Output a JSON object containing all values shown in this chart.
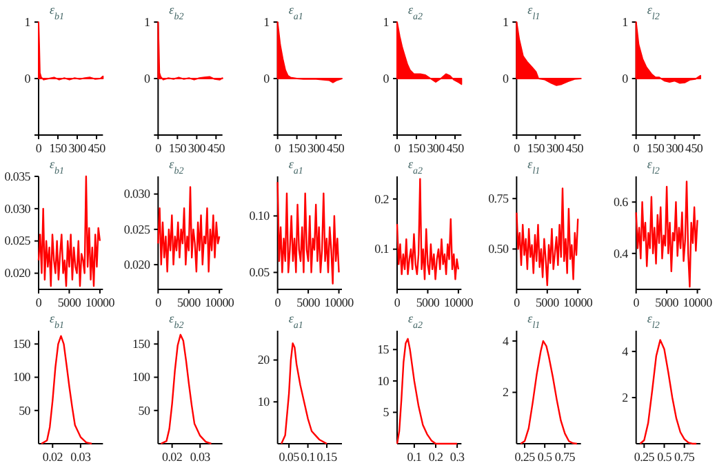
{
  "chart_data": [
    {
      "type": "area",
      "title": "ε$_{b1}$",
      "x": [
        0,
        5,
        10,
        20,
        40,
        80,
        120,
        160,
        200,
        240,
        280,
        320,
        360,
        400,
        440,
        480,
        500
      ],
      "series": [
        {
          "color": "#ff0000",
          "values": [
            1,
            0.6,
            0.1,
            0.02,
            -0.02,
            0,
            0.02,
            -0.02,
            0.01,
            -0.02,
            0.01,
            -0.01,
            0.01,
            0.02,
            -0.01,
            0,
            0.04
          ]
        }
      ],
      "xlim": [
        0,
        500
      ],
      "ylim": [
        -1,
        1
      ],
      "xticks": [
        0,
        150,
        300,
        450
      ],
      "yticks": [
        {
          "value": -1,
          "label": null
        },
        0,
        1
      ]
    },
    {
      "type": "area",
      "title": "ε$_{b2}$",
      "x": [
        0,
        5,
        10,
        20,
        40,
        80,
        120,
        160,
        200,
        240,
        280,
        320,
        360,
        400,
        440,
        480,
        500
      ],
      "series": [
        {
          "color": "#ff0000",
          "values": [
            1,
            0.6,
            0.1,
            0.03,
            -0.02,
            0.01,
            -0.01,
            0.02,
            -0.01,
            0.01,
            -0.02,
            0.01,
            0.02,
            0.03,
            -0.01,
            -0.02,
            0.01
          ]
        }
      ],
      "xlim": [
        0,
        500
      ],
      "ylim": [
        -1,
        1
      ],
      "xticks": [
        0,
        150,
        300,
        450
      ],
      "yticks": [
        {
          "value": -1,
          "label": null
        },
        0,
        1
      ]
    },
    {
      "type": "area",
      "title": "ε$_{a1}$",
      "x": [
        0,
        20,
        40,
        60,
        80,
        100,
        150,
        200,
        300,
        400,
        430,
        460,
        500
      ],
      "series": [
        {
          "color": "#ff0000",
          "values": [
            1,
            0.6,
            0.35,
            0.15,
            0.05,
            0.02,
            0,
            -0.01,
            -0.01,
            -0.03,
            -0.07,
            -0.03,
            0
          ]
        }
      ],
      "xlim": [
        0,
        500
      ],
      "ylim": [
        -1,
        1
      ],
      "xticks": [
        0,
        150,
        300,
        450
      ],
      "yticks": [
        {
          "value": -1,
          "label": null
        },
        0,
        1
      ]
    },
    {
      "type": "area",
      "title": "ε$_{a2}$",
      "x": [
        0,
        20,
        40,
        60,
        80,
        100,
        130,
        180,
        220,
        260,
        300,
        340,
        380,
        410,
        440,
        480,
        500
      ],
      "series": [
        {
          "color": "#ff0000",
          "values": [
            1,
            0.75,
            0.55,
            0.4,
            0.25,
            0.15,
            0.08,
            0.08,
            0.06,
            0,
            -0.06,
            0,
            0.08,
            0.05,
            -0.02,
            -0.07,
            -0.1
          ]
        }
      ],
      "xlim": [
        0,
        500
      ],
      "ylim": [
        -1,
        1
      ],
      "xticks": [
        0,
        150,
        300,
        450
      ],
      "yticks": [
        {
          "value": -1,
          "label": null
        },
        0,
        1
      ]
    },
    {
      "type": "area",
      "title": "ε$_{l1}$",
      "x": [
        0,
        20,
        50,
        80,
        120,
        150,
        170,
        220,
        270,
        310,
        350,
        400,
        450,
        500
      ],
      "series": [
        {
          "color": "#ff0000",
          "values": [
            1,
            0.7,
            0.4,
            0.3,
            0.2,
            0.12,
            0,
            -0.02,
            -0.08,
            -0.12,
            -0.1,
            -0.05,
            -0.01,
            0
          ]
        }
      ],
      "xlim": [
        0,
        500
      ],
      "ylim": [
        -1,
        1
      ],
      "xticks": [
        0,
        150,
        300,
        450
      ],
      "yticks": [
        {
          "value": -1,
          "label": null
        },
        0,
        1
      ]
    },
    {
      "type": "area",
      "title": "ε$_{l2}$",
      "x": [
        0,
        20,
        50,
        80,
        120,
        150,
        180,
        220,
        260,
        300,
        340,
        380,
        420,
        460,
        500
      ],
      "series": [
        {
          "color": "#ff0000",
          "values": [
            1,
            0.6,
            0.35,
            0.2,
            0.08,
            0.02,
            0.02,
            -0.04,
            -0.06,
            -0.04,
            -0.08,
            -0.07,
            -0.02,
            -0.01,
            0.05
          ]
        }
      ],
      "xlim": [
        0,
        500
      ],
      "ylim": [
        -1,
        1
      ],
      "xticks": [
        0,
        150,
        300,
        450
      ],
      "yticks": [
        {
          "value": -1,
          "label": null
        },
        0,
        1
      ]
    },
    {
      "type": "line",
      "title": "ε$_{b1}$",
      "x": [
        0,
        250,
        500,
        750,
        1000,
        1250,
        1500,
        1750,
        2000,
        2250,
        2500,
        2750,
        3000,
        3250,
        3500,
        3750,
        4000,
        4250,
        4500,
        4750,
        5000,
        5250,
        5500,
        5750,
        6000,
        6250,
        6500,
        6750,
        7000,
        7250,
        7500,
        7750,
        8000,
        8250,
        8500,
        8750,
        9000,
        9250,
        9500,
        9750,
        10000
      ],
      "series": [
        {
          "color": "#ff0000",
          "values": [
            0.022,
            0.026,
            0.02,
            0.03,
            0.019,
            0.025,
            0.021,
            0.024,
            0.018,
            0.026,
            0.022,
            0.02,
            0.025,
            0.019,
            0.023,
            0.026,
            0.02,
            0.022,
            0.018,
            0.025,
            0.021,
            0.026,
            0.019,
            0.024,
            0.021,
            0.02,
            0.025,
            0.018,
            0.023,
            0.022,
            0.02,
            0.035,
            0.021,
            0.027,
            0.019,
            0.024,
            0.018,
            0.026,
            0.021,
            0.027,
            0.025
          ]
        }
      ],
      "xlim": [
        0,
        10500
      ],
      "ylim": [
        0.0175,
        0.035
      ],
      "xticks": [
        0,
        5000,
        10000
      ],
      "yticks": [
        {
          "value": 0.02,
          "label": "0.020"
        },
        0.025,
        {
          "value": 0.03,
          "label": "0.030"
        },
        0.035
      ]
    },
    {
      "type": "line",
      "title": "ε$_{b2}$",
      "x": [
        0,
        250,
        500,
        750,
        1000,
        1250,
        1500,
        1750,
        2000,
        2250,
        2500,
        2750,
        3000,
        3250,
        3500,
        3750,
        4000,
        4250,
        4500,
        4750,
        5000,
        5250,
        5500,
        5750,
        6000,
        6250,
        6500,
        6750,
        7000,
        7250,
        7500,
        7750,
        8000,
        8250,
        8500,
        8750,
        9000,
        9250,
        9500,
        9750,
        10000
      ],
      "series": [
        {
          "color": "#ff0000",
          "values": [
            0.023,
            0.028,
            0.02,
            0.026,
            0.021,
            0.024,
            0.019,
            0.025,
            0.022,
            0.027,
            0.02,
            0.024,
            0.022,
            0.026,
            0.021,
            0.025,
            0.023,
            0.028,
            0.02,
            0.024,
            0.022,
            0.031,
            0.021,
            0.025,
            0.023,
            0.019,
            0.026,
            0.022,
            0.027,
            0.02,
            0.024,
            0.023,
            0.028,
            0.019,
            0.025,
            0.022,
            0.027,
            0.021,
            0.026,
            0.023,
            0.024
          ]
        }
      ],
      "xlim": [
        0,
        10500
      ],
      "ylim": [
        0.0165,
        0.0325
      ],
      "xticks": [
        0,
        5000,
        10000
      ],
      "yticks": [
        {
          "value": 0.02,
          "label": "0.020"
        },
        0.025,
        {
          "value": 0.03,
          "label": "0.030"
        }
      ]
    },
    {
      "type": "line",
      "title": "ε$_{a1}$",
      "x": [
        0,
        250,
        500,
        750,
        1000,
        1250,
        1500,
        1750,
        2000,
        2250,
        2500,
        2750,
        3000,
        3250,
        3500,
        3750,
        4000,
        4250,
        4500,
        4750,
        5000,
        5250,
        5500,
        5750,
        6000,
        6250,
        6500,
        6750,
        7000,
        7250,
        7500,
        7750,
        8000,
        8250,
        8500,
        8750,
        9000,
        9250,
        9500,
        9750,
        10000
      ],
      "series": [
        {
          "color": "#ff0000",
          "values": [
            0.13,
            0.06,
            0.09,
            0.05,
            0.08,
            0.06,
            0.12,
            0.05,
            0.07,
            0.1,
            0.06,
            0.08,
            0.05,
            0.11,
            0.07,
            0.06,
            0.09,
            0.05,
            0.12,
            0.07,
            0.06,
            0.1,
            0.05,
            0.08,
            0.07,
            0.11,
            0.06,
            0.09,
            0.05,
            0.07,
            0.12,
            0.06,
            0.08,
            0.05,
            0.09,
            0.07,
            0.04,
            0.1,
            0.06,
            0.08,
            0.05
          ]
        }
      ],
      "xlim": [
        0,
        10500
      ],
      "ylim": [
        0.035,
        0.135
      ],
      "xticks": [
        0,
        5000,
        10000
      ],
      "yticks": [
        0.05,
        {
          "value": 0.1,
          "label": "0.10"
        }
      ]
    },
    {
      "type": "line",
      "title": "ε$_{a2}$",
      "x": [
        0,
        250,
        500,
        750,
        1000,
        1250,
        1500,
        1750,
        2000,
        2250,
        2500,
        2750,
        3000,
        3250,
        3500,
        3750,
        4000,
        4250,
        4500,
        4750,
        5000,
        5250,
        5500,
        5750,
        6000,
        6250,
        6500,
        6750,
        7000,
        7250,
        7500,
        7750,
        8000,
        8250,
        8500,
        8750,
        9000,
        9250,
        9500,
        9750,
        10000
      ],
      "series": [
        {
          "color": "#ff0000",
          "values": [
            0.15,
            0.07,
            0.11,
            0.05,
            0.09,
            0.06,
            0.12,
            0.05,
            0.08,
            0.1,
            0.06,
            0.13,
            0.07,
            0.05,
            0.09,
            0.24,
            0.06,
            0.1,
            0.04,
            0.14,
            0.07,
            0.05,
            0.11,
            0.06,
            0.09,
            0.04,
            0.08,
            0.1,
            0.06,
            0.12,
            0.07,
            0.09,
            0.05,
            0.11,
            0.08,
            0.16,
            0.06,
            0.09,
            0.04,
            0.08,
            0.06
          ]
        }
      ],
      "xlim": [
        0,
        10500
      ],
      "ylim": [
        0.02,
        0.245
      ],
      "xticks": [
        0,
        5000,
        10000
      ],
      "yticks": [
        0.1,
        0.2
      ]
    },
    {
      "type": "line",
      "title": "ε$_{l1}$",
      "x": [
        0,
        250,
        500,
        750,
        1000,
        1250,
        1500,
        1750,
        2000,
        2250,
        2500,
        2750,
        3000,
        3250,
        3500,
        3750,
        4000,
        4250,
        4500,
        4750,
        5000,
        5250,
        5500,
        5750,
        6000,
        6250,
        6500,
        6750,
        7000,
        7250,
        7500,
        7750,
        8000,
        8250,
        8500,
        8750,
        9000,
        9250,
        9500,
        9750,
        10000
      ],
      "series": [
        {
          "color": "#ff0000",
          "values": [
            0.68,
            0.5,
            0.58,
            0.42,
            0.62,
            0.47,
            0.55,
            0.4,
            0.6,
            0.46,
            0.52,
            0.38,
            0.57,
            0.44,
            0.62,
            0.41,
            0.5,
            0.36,
            0.55,
            0.45,
            0.32,
            0.52,
            0.43,
            0.6,
            0.4,
            0.48,
            0.56,
            0.42,
            0.62,
            0.46,
            0.8,
            0.44,
            0.55,
            0.38,
            0.7,
            0.45,
            0.52,
            0.35,
            0.58,
            0.47,
            0.65
          ]
        }
      ],
      "xlim": [
        0,
        10500
      ],
      "ylim": [
        0.3,
        0.86
      ],
      "xticks": [
        0,
        5000,
        10000
      ],
      "yticks": [
        {
          "value": 0.5,
          "label": "0.50"
        },
        0.75
      ]
    },
    {
      "type": "line",
      "title": "ε$_{l2}$",
      "x": [
        0,
        250,
        500,
        750,
        1000,
        1250,
        1500,
        1750,
        2000,
        2250,
        2500,
        2750,
        3000,
        3250,
        3500,
        3750,
        4000,
        4250,
        4500,
        4750,
        5000,
        5250,
        5500,
        5750,
        6000,
        6250,
        6500,
        6750,
        7000,
        7250,
        7500,
        7750,
        8000,
        8250,
        8500,
        8750,
        9000,
        9250,
        9500,
        9750,
        10000
      ],
      "series": [
        {
          "color": "#ff0000",
          "values": [
            0.56,
            0.42,
            0.5,
            0.38,
            0.6,
            0.45,
            0.52,
            0.35,
            0.48,
            0.42,
            0.62,
            0.4,
            0.5,
            0.36,
            0.55,
            0.44,
            0.58,
            0.38,
            0.47,
            0.43,
            0.66,
            0.4,
            0.52,
            0.33,
            0.48,
            0.45,
            0.6,
            0.39,
            0.5,
            0.42,
            0.56,
            0.37,
            0.45,
            0.68,
            0.4,
            0.27,
            0.52,
            0.44,
            0.58,
            0.41,
            0.53
          ]
        }
      ],
      "xlim": [
        0,
        10500
      ],
      "ylim": [
        0.26,
        0.7
      ],
      "xticks": [
        0,
        5000,
        10000
      ],
      "yticks": [
        0.4,
        0.6
      ]
    },
    {
      "type": "line",
      "title": "ε$_{b1}$",
      "x": [
        0.016,
        0.018,
        0.019,
        0.02,
        0.021,
        0.022,
        0.023,
        0.024,
        0.025,
        0.026,
        0.027,
        0.028,
        0.03,
        0.032,
        0.034
      ],
      "series": [
        {
          "color": "#ff0000",
          "values": [
            0,
            5,
            25,
            65,
            115,
            150,
            162,
            150,
            118,
            85,
            55,
            28,
            10,
            2,
            0
          ]
        }
      ],
      "xlim": [
        0.015,
        0.038
      ],
      "ylim": [
        0,
        170
      ],
      "xticks": [
        0.02,
        0.03
      ],
      "yticks": [
        50,
        100,
        150
      ]
    },
    {
      "type": "line",
      "title": "ε$_{b2}$",
      "x": [
        0.016,
        0.018,
        0.019,
        0.02,
        0.021,
        0.022,
        0.023,
        0.024,
        0.025,
        0.026,
        0.027,
        0.028,
        0.03,
        0.032,
        0.034
      ],
      "series": [
        {
          "color": "#ff0000",
          "values": [
            0,
            4,
            22,
            60,
            110,
            148,
            164,
            155,
            125,
            90,
            58,
            30,
            12,
            3,
            0
          ]
        }
      ],
      "xlim": [
        0.015,
        0.038
      ],
      "ylim": [
        0,
        170
      ],
      "xticks": [
        0.02,
        0.03
      ],
      "yticks": [
        50,
        100,
        150
      ]
    },
    {
      "type": "line",
      "title": "ε$_{a1}$",
      "x": [
        0.03,
        0.04,
        0.05,
        0.055,
        0.06,
        0.065,
        0.07,
        0.08,
        0.09,
        0.1,
        0.11,
        0.12,
        0.13,
        0.15
      ],
      "series": [
        {
          "color": "#ff0000",
          "values": [
            0,
            2,
            12,
            20,
            24,
            23,
            19,
            14,
            10,
            6,
            3,
            2,
            1,
            0
          ]
        }
      ],
      "xlim": [
        0.02,
        0.19
      ],
      "ylim": [
        0,
        27
      ],
      "xticks": [
        0.05,
        0.1,
        0.15
      ],
      "yticks": [
        10,
        20
      ]
    },
    {
      "type": "line",
      "title": "ε$_{a2}$",
      "x": [
        0.02,
        0.03,
        0.04,
        0.05,
        0.06,
        0.07,
        0.08,
        0.1,
        0.12,
        0.14,
        0.16,
        0.18,
        0.2,
        0.25,
        0.3
      ],
      "series": [
        {
          "color": "#ff0000",
          "values": [
            0,
            2,
            7,
            13,
            16,
            16.7,
            15,
            10,
            6,
            3,
            1.5,
            0.5,
            0,
            0,
            0
          ]
        }
      ],
      "xlim": [
        0.02,
        0.32
      ],
      "ylim": [
        0,
        18
      ],
      "xticks": [
        0.1,
        0.2,
        0.3
      ],
      "yticks": [
        5,
        10,
        15
      ]
    },
    {
      "type": "line",
      "title": "ε$_{l1}$",
      "x": [
        0.2,
        0.25,
        0.3,
        0.35,
        0.4,
        0.45,
        0.48,
        0.52,
        0.55,
        0.6,
        0.65,
        0.7,
        0.75,
        0.8,
        0.85,
        0.9
      ],
      "series": [
        {
          "color": "#ff0000",
          "values": [
            0,
            0.1,
            0.6,
            1.6,
            2.7,
            3.6,
            4,
            3.8,
            3.4,
            2.6,
            1.7,
            0.9,
            0.4,
            0.1,
            0.02,
            0
          ]
        }
      ],
      "xlim": [
        0.15,
        0.95
      ],
      "ylim": [
        0,
        4.4
      ],
      "xticks": [
        0.25,
        0.5,
        0.75
      ],
      "yticks": [
        2,
        4
      ]
    },
    {
      "type": "line",
      "title": "ε$_{l2}$",
      "x": [
        0.2,
        0.25,
        0.3,
        0.35,
        0.4,
        0.45,
        0.5,
        0.55,
        0.6,
        0.65,
        0.7,
        0.75,
        0.8,
        0.85,
        0.9
      ],
      "series": [
        {
          "color": "#ff0000",
          "values": [
            0,
            0.15,
            0.9,
            2.3,
            3.8,
            4.5,
            4.1,
            3.1,
            2,
            1.1,
            0.5,
            0.2,
            0.05,
            0,
            0
          ]
        }
      ],
      "xlim": [
        0.15,
        0.95
      ],
      "ylim": [
        0,
        4.9
      ],
      "xticks": [
        0.25,
        0.5,
        0.75
      ],
      "yticks": [
        2,
        4
      ]
    }
  ]
}
